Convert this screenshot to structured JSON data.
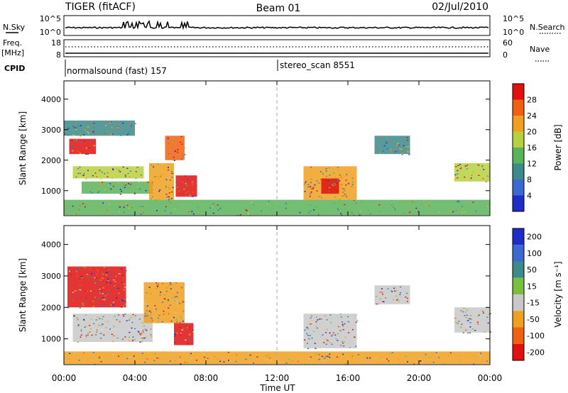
{
  "header": {
    "radar": "TIGER (fitACF)",
    "beam": "Beam 01",
    "date": "02/Jul/2010"
  },
  "nsky_panel": {
    "left_label": "N.Sky",
    "right_label": "N.Search",
    "left_ticks": [
      "10^5",
      "10^0"
    ],
    "right_ticks": [
      "10^5",
      "10^0"
    ]
  },
  "freq_panel": {
    "left_label_1": "Freq.",
    "left_label_2": "[MHz]",
    "right_label": "Nave",
    "left_ticks": [
      "18",
      "8"
    ],
    "right_ticks": [
      "60",
      "0"
    ]
  },
  "cpid": {
    "label": "CPID",
    "mode1": "normalsound (fast) 157",
    "mode2": "stereo_scan 8551"
  },
  "chart_data": [
    {
      "type": "heatmap",
      "name": "power",
      "ylabel": "Slant Range [km]",
      "xlabel": "",
      "x_ticks": [
        "00:00",
        "04:00",
        "08:00",
        "12:00",
        "16:00",
        "20:00",
        "00:00"
      ],
      "x_range_hours": [
        0,
        24
      ],
      "y_ticks": [
        1000,
        2000,
        3000,
        4000
      ],
      "ylim": [
        180,
        4600
      ],
      "colorbar_label": "Power [dB]",
      "colorbar_ticks": [
        4,
        8,
        12,
        16,
        20,
        24,
        28
      ],
      "colorbar_colors": [
        "#1e2cc8",
        "#3a6ad0",
        "#3c8a8a",
        "#5ab35a",
        "#b8d040",
        "#f0a020",
        "#f06010",
        "#e01010"
      ],
      "marker_hour": 12,
      "regions": [
        {
          "t0": 0.3,
          "t1": 1.8,
          "r0": 2200,
          "r1": 2700,
          "level": 28
        },
        {
          "t0": 0.5,
          "t1": 4.5,
          "r0": 1400,
          "r1": 1800,
          "level": 16
        },
        {
          "t0": 1.0,
          "t1": 5.0,
          "r0": 900,
          "r1": 1300,
          "level": 12
        },
        {
          "t0": 4.8,
          "t1": 6.2,
          "r0": 700,
          "r1": 1900,
          "level": 20
        },
        {
          "t0": 5.7,
          "t1": 6.8,
          "r0": 2000,
          "r1": 2800,
          "level": 24
        },
        {
          "t0": 6.3,
          "t1": 7.5,
          "r0": 800,
          "r1": 1500,
          "level": 28
        },
        {
          "t0": 0.0,
          "t1": 4.0,
          "r0": 2800,
          "r1": 3300,
          "level": 8
        },
        {
          "t0": 13.5,
          "t1": 16.5,
          "r0": 700,
          "r1": 1800,
          "level": 20
        },
        {
          "t0": 14.5,
          "t1": 15.5,
          "r0": 900,
          "r1": 1400,
          "level": 28
        },
        {
          "t0": 17.5,
          "t1": 19.5,
          "r0": 2200,
          "r1": 2800,
          "level": 8
        },
        {
          "t0": 22.0,
          "t1": 24.0,
          "r0": 1300,
          "r1": 1900,
          "level": 16
        },
        {
          "t0": 0.0,
          "t1": 24.0,
          "r0": 200,
          "r1": 700,
          "level": 12
        }
      ]
    },
    {
      "type": "heatmap",
      "name": "velocity",
      "ylabel": "Slant Range [km]",
      "xlabel": "Time UT",
      "x_ticks": [
        "00:00",
        "04:00",
        "08:00",
        "12:00",
        "16:00",
        "20:00",
        "00:00"
      ],
      "x_range_hours": [
        0,
        24
      ],
      "y_ticks": [
        1000,
        2000,
        3000,
        4000
      ],
      "ylim": [
        180,
        4600
      ],
      "colorbar_label": "Velocity [m s⁻¹]",
      "colorbar_ticks": [
        200,
        100,
        50,
        15,
        -15,
        -50,
        -100,
        -200
      ],
      "colorbar_colors": [
        "#1e2cc8",
        "#3a6ad0",
        "#3c8a8a",
        "#7ac040",
        "#c8c8c8",
        "#f0a020",
        "#f06010",
        "#e01010"
      ],
      "marker_hour": 12,
      "regions": [
        {
          "t0": 0.2,
          "t1": 3.5,
          "r0": 2000,
          "r1": 3300,
          "level": -200
        },
        {
          "t0": 0.5,
          "t1": 5.0,
          "r0": 1300,
          "r1": 1800,
          "level": 0
        },
        {
          "t0": 0.5,
          "t1": 5.0,
          "r0": 900,
          "r1": 1300,
          "level": 0
        },
        {
          "t0": 4.5,
          "t1": 6.8,
          "r0": 1500,
          "r1": 2800,
          "level": -50
        },
        {
          "t0": 6.2,
          "t1": 7.3,
          "r0": 800,
          "r1": 1500,
          "level": -200
        },
        {
          "t0": 13.5,
          "t1": 16.5,
          "r0": 700,
          "r1": 1800,
          "level": 0
        },
        {
          "t0": 17.5,
          "t1": 19.5,
          "r0": 2100,
          "r1": 2700,
          "level": 0
        },
        {
          "t0": 22.0,
          "t1": 24.0,
          "r0": 1200,
          "r1": 2000,
          "level": 0
        },
        {
          "t0": 0.0,
          "t1": 24.0,
          "r0": 200,
          "r1": 600,
          "level": -50
        }
      ]
    }
  ]
}
